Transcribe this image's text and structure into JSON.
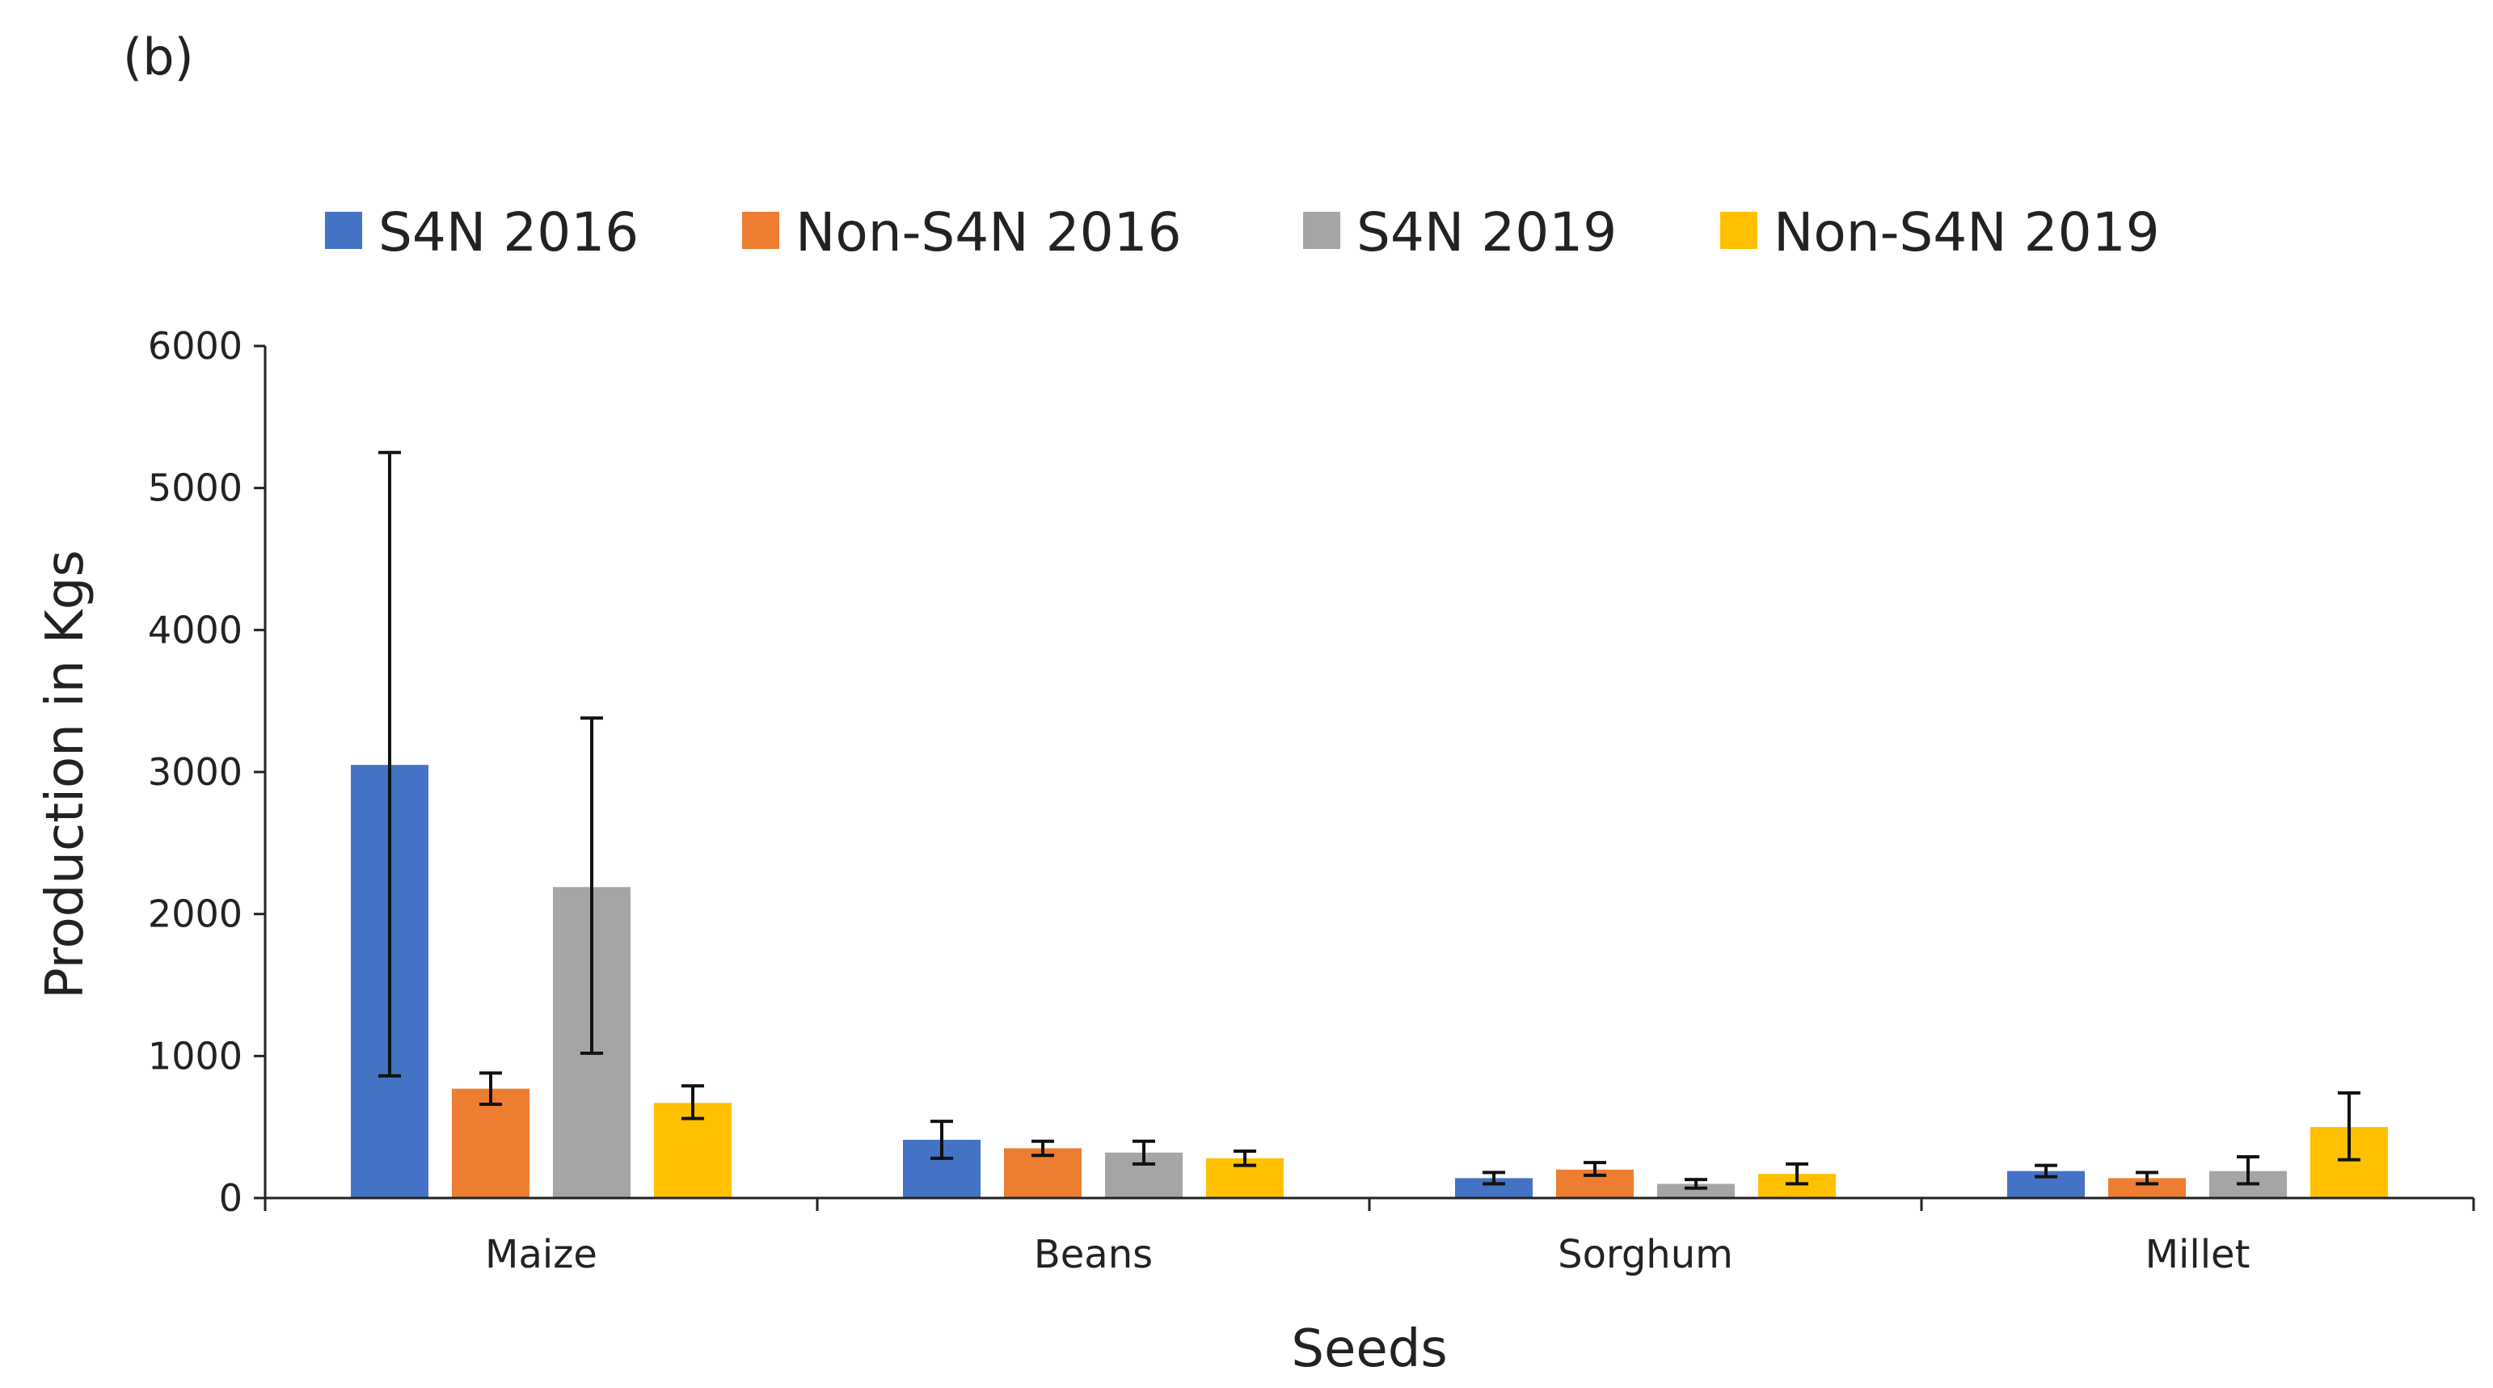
{
  "panel_label": "(b)",
  "colors": {
    "S4N 2016": "#4472C4",
    "Non-S4N 2016": "#ED7D31",
    "S4N 2019": "#A5A5A5",
    "Non-S4N 2019": "#FFC000",
    "axis": "#222222",
    "error_bar": "#111111"
  },
  "chart_data": {
    "type": "bar",
    "title": "",
    "xlabel": "Seeds",
    "ylabel": "Production in  Kgs",
    "ylim": [
      0,
      6000
    ],
    "yticks": [
      0,
      1000,
      2000,
      3000,
      4000,
      5000,
      6000
    ],
    "ytick_labels": [
      "0",
      "1000",
      "2000",
      "3000",
      "4000",
      "5000",
      "6000"
    ],
    "grid": false,
    "legend_position": "top",
    "categories": [
      "Maize",
      "Beans",
      "Sorghum",
      "Millet"
    ],
    "series": [
      {
        "name": "S4N 2016",
        "values": [
          3050,
          410,
          140,
          190
        ],
        "error_low": [
          860,
          280,
          100,
          150
        ],
        "error_high": [
          5250,
          540,
          180,
          230
        ]
      },
      {
        "name": "Non-S4N 2016",
        "values": [
          770,
          350,
          200,
          140
        ],
        "error_low": [
          660,
          300,
          160,
          100
        ],
        "error_high": [
          880,
          400,
          250,
          180
        ]
      },
      {
        "name": "S4N 2019",
        "values": [
          2190,
          320,
          100,
          190
        ],
        "error_low": [
          1020,
          240,
          70,
          100
        ],
        "error_high": [
          3380,
          400,
          130,
          290
        ]
      },
      {
        "name": "Non-S4N 2019",
        "values": [
          670,
          280,
          170,
          500
        ],
        "error_low": [
          560,
          230,
          100,
          270
        ],
        "error_high": [
          790,
          330,
          240,
          740
        ]
      }
    ]
  }
}
